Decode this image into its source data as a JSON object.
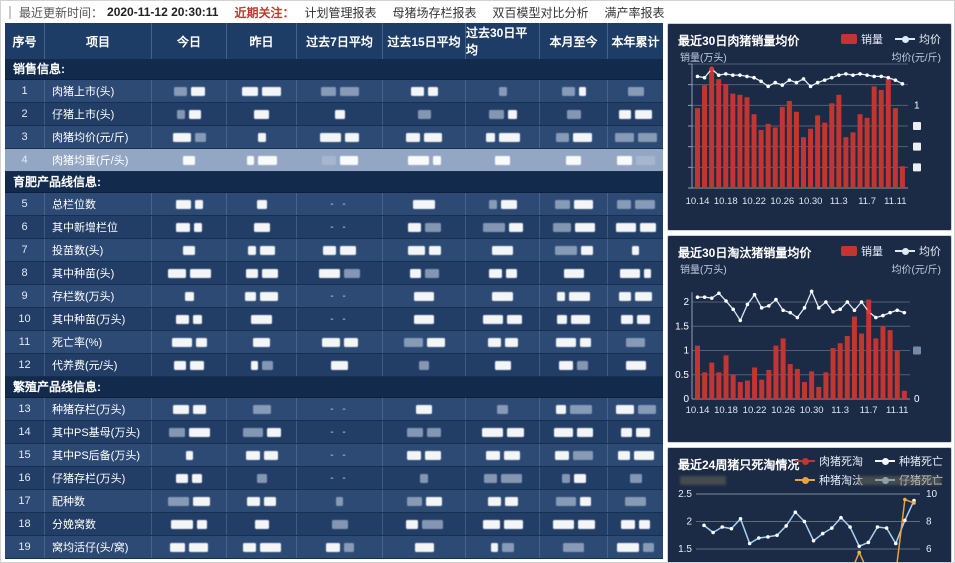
{
  "topbar": {
    "update_label": "最近更新时间：",
    "update_time": "2020-11-12 20:30:11",
    "focus_label": "近期关注：",
    "links": [
      "计划管理报表",
      "母猪场存栏报表",
      "双百模型对比分析",
      "满产率报表"
    ]
  },
  "table": {
    "columns": [
      "序号",
      "项目",
      "今日",
      "昨日",
      "过去7日平均",
      "过去15日平均",
      "过去30日平均",
      "本月至今",
      "本年累计"
    ],
    "values_redacted": true,
    "sections": [
      {
        "title": "销售信息:",
        "rows": [
          {
            "id": 1,
            "label": "肉猪上市(头)"
          },
          {
            "id": 2,
            "label": "仔猪上市(头)"
          },
          {
            "id": 3,
            "label": "肉猪均价(元/斤)"
          },
          {
            "id": 4,
            "label": "肉猪均重(斤/头)",
            "highlighted": true
          }
        ]
      },
      {
        "title": "育肥产品线信息:",
        "rows": [
          {
            "id": 5,
            "label": "总栏位数",
            "dash_cols": [
              2
            ]
          },
          {
            "id": 6,
            "label": "其中新增栏位",
            "dash_cols": [
              2
            ]
          },
          {
            "id": 7,
            "label": "投苗数(头)"
          },
          {
            "id": 8,
            "label": "其中种苗(头)"
          },
          {
            "id": 9,
            "label": "存栏数(万头)",
            "dash_cols": [
              2
            ]
          },
          {
            "id": 10,
            "label": "其中种苗(万头)",
            "dash_cols": [
              2
            ]
          },
          {
            "id": 11,
            "label": "死亡率(%)"
          },
          {
            "id": 12,
            "label": "代养费(元/头)"
          }
        ]
      },
      {
        "title": "繁殖产品线信息:",
        "rows": [
          {
            "id": 13,
            "label": "种猪存栏(万头)",
            "dash_cols": [
              2
            ]
          },
          {
            "id": 14,
            "label": "其中PS基母(万头)",
            "dash_cols": [
              2
            ]
          },
          {
            "id": 15,
            "label": "其中PS后备(万头)",
            "dash_cols": [
              2
            ]
          },
          {
            "id": 16,
            "label": "仔猪存栏(万头)",
            "dash_cols": [
              2
            ]
          },
          {
            "id": 17,
            "label": "配种数"
          },
          {
            "id": 18,
            "label": "分娩窝数"
          },
          {
            "id": 19,
            "label": "窝均活仔(头/窝)"
          }
        ]
      }
    ]
  },
  "colors": {
    "bar_red": "#c23531",
    "line_white": "#dce9f7",
    "marker_red": "#e03a30",
    "orange": "#e8a33d",
    "light_blue": "#a6d2f5",
    "panel_bg": "#1b2a45",
    "header_bg": "#1e3d66",
    "row_highlight": "#93a7c4",
    "focus_red": "#c0392b"
  },
  "chart_data": [
    {
      "type": "bar+line",
      "title": "最近30日肉猪销量均价",
      "ylabel_left": "销量(万头)",
      "ylabel_right": "均价(元/斤)",
      "n": 30,
      "x_ticks": [
        "10.14",
        "10.18",
        "10.22",
        "10.26",
        "10.30",
        "11.3",
        "11.7",
        "11.11"
      ],
      "x_tick_interval": 4,
      "grid": true,
      "legend_position": "top-right",
      "bars": {
        "name": "销量",
        "color": "#c23531",
        "axis_values_redacted": true,
        "values_norm": [
          0.66,
          0.85,
          0.98,
          0.9,
          0.86,
          0.78,
          0.77,
          0.75,
          0.61,
          0.48,
          0.53,
          0.5,
          0.67,
          0.72,
          0.63,
          0.42,
          0.49,
          0.6,
          0.54,
          0.7,
          0.77,
          0.42,
          0.46,
          0.61,
          0.58,
          0.84,
          0.81,
          0.9,
          0.66,
          0.18
        ]
      },
      "line": {
        "name": "均价",
        "color": "#dce9f7",
        "red_marker_index": 2,
        "values_norm": [
          0.9,
          0.89,
          0.96,
          0.91,
          0.92,
          0.91,
          0.91,
          0.9,
          0.89,
          0.86,
          0.82,
          0.85,
          0.83,
          0.87,
          0.85,
          0.88,
          0.82,
          0.85,
          0.87,
          0.89,
          0.91,
          0.92,
          0.91,
          0.92,
          0.91,
          0.9,
          0.9,
          0.89,
          0.87,
          0.84
        ]
      },
      "left_axis": {
        "labels_redacted": true
      },
      "right_axis": {
        "visible_label": "1",
        "redacted_label_count": 3
      }
    },
    {
      "type": "bar+line",
      "title": "最近30日淘汰猪销量均价",
      "ylabel_left": "销量(万头)",
      "ylabel_right": "均价(元/斤)",
      "n": 30,
      "x_ticks": [
        "10.14",
        "10.18",
        "10.22",
        "10.26",
        "10.30",
        "11.3",
        "11.7",
        "11.11"
      ],
      "x_tick_interval": 4,
      "grid": true,
      "legend_position": "top-right",
      "left_axis": {
        "ticks": [
          0,
          0.5,
          1,
          1.5,
          2
        ],
        "ylim": [
          0,
          2.3
        ]
      },
      "right_axis": {
        "bottom_label": "0",
        "redacted_label_count": 1
      },
      "bars": {
        "name": "销量",
        "color": "#c23531",
        "values": [
          1.1,
          0.55,
          0.75,
          0.55,
          0.9,
          0.5,
          0.35,
          0.38,
          0.65,
          0.4,
          0.6,
          1.1,
          1.25,
          0.72,
          0.62,
          0.35,
          0.57,
          0.25,
          0.55,
          1.05,
          1.15,
          1.3,
          1.7,
          1.35,
          2.05,
          1.25,
          1.5,
          1.42,
          1.0,
          0.17
        ]
      },
      "line": {
        "name": "均价",
        "color": "#dce9f7",
        "red_marker_index": 24,
        "values_left_scale": [
          2.1,
          2.1,
          2.08,
          2.18,
          2.02,
          1.85,
          1.62,
          1.95,
          2.15,
          1.88,
          1.92,
          2.05,
          1.83,
          1.78,
          1.68,
          1.88,
          2.22,
          1.88,
          2.0,
          1.8,
          1.85,
          2.0,
          1.83,
          2.0,
          1.8,
          1.68,
          1.72,
          1.78,
          1.83,
          1.78
        ]
      }
    },
    {
      "type": "line",
      "title": "最近24周猪只死淘情况",
      "n": 24,
      "x_axis_visible": false,
      "grid": true,
      "ylabel_left_redacted": true,
      "ylabel_right_redacted": true,
      "left_axis": {
        "ticks": [
          2.5,
          2,
          1.5
        ]
      },
      "right_axis": {
        "ticks": [
          10,
          8,
          6
        ]
      },
      "legend": [
        {
          "label": "肉猪死淘",
          "color": "#c23531"
        },
        {
          "label": "种猪死亡",
          "color": "#f2f5f9"
        },
        {
          "label": "种猪淘汰",
          "color": "#e8a33d"
        },
        {
          "label": "仔猪死亡",
          "color": "#a6d2f5"
        }
      ],
      "series": [
        {
          "name": "仔猪死亡",
          "axis": "left",
          "color": "#a6d2f5",
          "values": [
            1.93,
            1.8,
            1.9,
            1.87,
            2.05,
            1.6,
            1.7,
            1.72,
            1.75,
            1.92,
            2.17,
            2.0,
            1.65,
            1.78,
            1.88,
            2.07,
            1.9,
            1.55,
            1.62,
            1.9,
            1.88,
            1.6,
            2.02,
            2.38
          ]
        },
        {
          "name": "种猪淘汰",
          "axis": "right",
          "color": "#e8a33d",
          "values": [
            4.2,
            4.2,
            4.2,
            4.2,
            4.2,
            4.2,
            4.2,
            4.2,
            4.2,
            4.2,
            4.2,
            4.2,
            4.2,
            4.2,
            4.2,
            4.2,
            4.2,
            5.75,
            4.3,
            4.3,
            4.3,
            4.2,
            9.6,
            9.35
          ]
        }
      ]
    }
  ]
}
